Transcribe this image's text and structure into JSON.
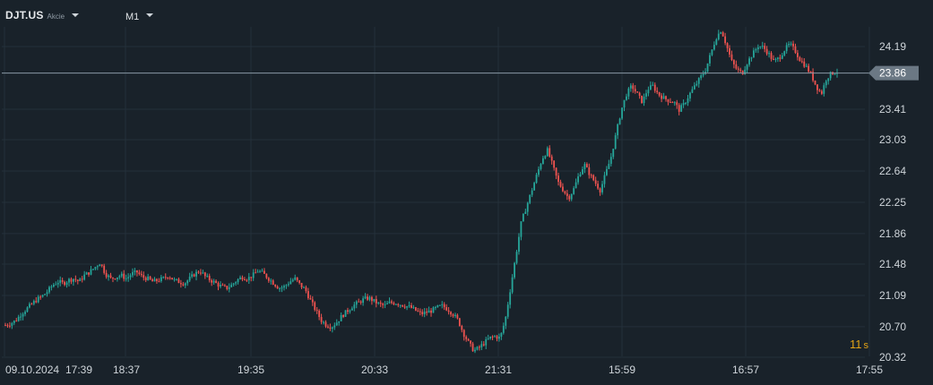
{
  "toolbar": {
    "symbol": "DJT.US",
    "symbol_type": "Akcie",
    "timeframe": "M1"
  },
  "price_axis": {
    "labels": [
      "24.19",
      "23.41",
      "23.03",
      "22.64",
      "22.25",
      "21.86",
      "21.48",
      "21.09",
      "20.70",
      "20.32"
    ],
    "current_price": "23.86"
  },
  "time_axis": {
    "labels": [
      "09.10.2024",
      "17:39",
      "18:37",
      "19:35",
      "20:33",
      "21:31",
      "15:59",
      "16:57",
      "17:55"
    ]
  },
  "countdown": {
    "value": "11",
    "unit": "s"
  },
  "colors": {
    "background": "#19222a",
    "grid": "#24303a",
    "up": "#26a69a",
    "down": "#ef5350",
    "price_line": "#8796a3",
    "price_tag": "#6b7884",
    "countdown": "#e3a417"
  },
  "chart_data": {
    "type": "candlestick",
    "instrument": "DJT.US",
    "timeframe": "M1",
    "y_ticks": [
      24.19,
      23.41,
      23.03,
      22.64,
      22.25,
      21.86,
      21.48,
      21.09,
      20.7,
      20.32
    ],
    "ylim": [
      20.3,
      24.5
    ],
    "x_tick_labels": [
      "09.10.2024",
      "17:39",
      "18:37",
      "19:35",
      "20:33",
      "21:31",
      "15:59",
      "16:57",
      "17:55"
    ],
    "current_price": 23.86,
    "close_path": [
      20.72,
      20.74,
      20.78,
      20.86,
      20.92,
      20.98,
      21.04,
      21.08,
      21.14,
      21.22,
      21.26,
      21.24,
      21.28,
      21.3,
      21.26,
      21.34,
      21.38,
      21.44,
      21.5,
      21.36,
      21.3,
      21.32,
      21.34,
      21.3,
      21.36,
      21.38,
      21.32,
      21.3,
      21.26,
      21.28,
      21.3,
      21.34,
      21.28,
      21.26,
      21.24,
      21.3,
      21.36,
      21.4,
      21.32,
      21.28,
      21.24,
      21.2,
      21.18,
      21.22,
      21.28,
      21.32,
      21.3,
      21.34,
      21.4,
      21.36,
      21.3,
      21.24,
      21.18,
      21.2,
      21.26,
      21.3,
      21.22,
      21.16,
      21.02,
      20.9,
      20.78,
      20.72,
      20.7,
      20.76,
      20.84,
      20.9,
      20.96,
      21.0,
      21.04,
      21.06,
      21.02,
      20.98,
      20.96,
      21.0,
      21.0,
      20.98,
      20.96,
      20.94,
      20.9,
      20.86,
      20.88,
      20.9,
      20.94,
      20.96,
      20.92,
      20.86,
      20.78,
      20.62,
      20.5,
      20.4,
      20.44,
      20.5,
      20.56,
      20.58,
      20.56,
      20.8,
      21.2,
      21.6,
      22.0,
      22.2,
      22.4,
      22.6,
      22.8,
      22.9,
      22.7,
      22.5,
      22.4,
      22.3,
      22.42,
      22.6,
      22.72,
      22.6,
      22.5,
      22.4,
      22.6,
      22.8,
      23.1,
      23.4,
      23.6,
      23.7,
      23.6,
      23.5,
      23.66,
      23.7,
      23.6,
      23.55,
      23.52,
      23.5,
      23.4,
      23.48,
      23.6,
      23.7,
      23.8,
      23.9,
      24.1,
      24.3,
      24.4,
      24.2,
      24.0,
      23.9,
      23.86,
      24.0,
      24.1,
      24.2,
      24.18,
      24.1,
      24.0,
      24.05,
      24.15,
      24.22,
      24.14,
      24.02,
      23.95,
      23.85,
      23.7,
      23.6,
      23.8,
      23.86,
      23.88
    ]
  }
}
